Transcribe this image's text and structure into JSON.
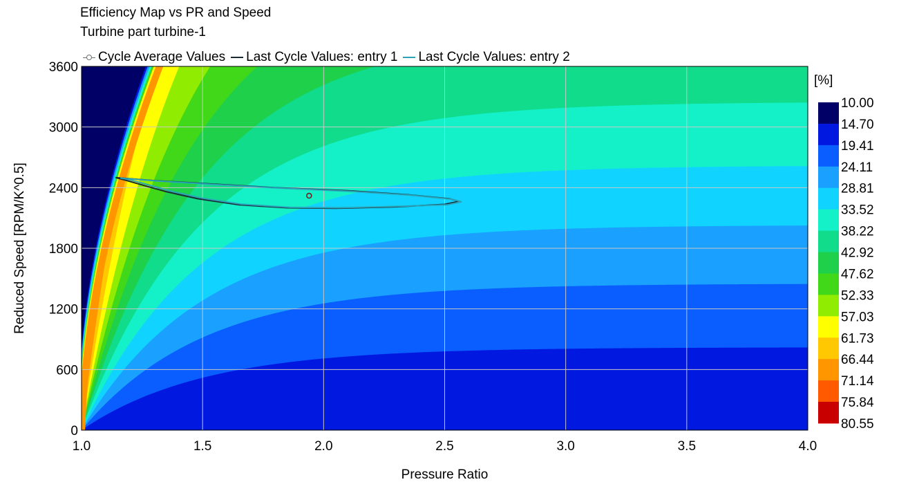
{
  "chart_data": {
    "type": "heatmap",
    "title": "Efficiency Map vs PR and Speed",
    "subtitle": "Turbine part turbine-1",
    "xlabel": "Pressure Ratio",
    "ylabel": "Reduced Speed [RPM/K^0.5]",
    "xlim": [
      1.0,
      4.0
    ],
    "ylim": [
      0,
      3600
    ],
    "x_ticks": [
      "1.0",
      "1.5",
      "2.0",
      "2.5",
      "3.0",
      "3.5",
      "4.0"
    ],
    "y_ticks": [
      "0",
      "600",
      "1200",
      "1800",
      "2400",
      "3000",
      "3600"
    ],
    "grid": true,
    "legend": {
      "position": "top",
      "entries": [
        {
          "label": "Cycle Average Values",
          "color": "#6a7072",
          "marker": "circle"
        },
        {
          "label": "Last Cycle Values: entry 1",
          "color": "#1a2b33"
        },
        {
          "label": "Last Cycle Values: entry 2",
          "color": "#2aa3b8"
        }
      ]
    },
    "colorbar": {
      "unit": "[%]",
      "levels": [
        "10.00",
        "14.70",
        "19.41",
        "24.11",
        "28.81",
        "33.52",
        "38.22",
        "42.92",
        "47.62",
        "52.33",
        "57.03",
        "61.73",
        "66.44",
        "71.14",
        "75.84",
        "80.55"
      ],
      "colors": [
        "#000066",
        "#0018e0",
        "#0a5dff",
        "#1aa0ff",
        "#10d4ff",
        "#14f0c8",
        "#10dc8c",
        "#1ed04a",
        "#40d818",
        "#90ec00",
        "#ffff00",
        "#ffc800",
        "#ff9600",
        "#ff5a00",
        "#f51010",
        "#c80000"
      ]
    },
    "series": [
      {
        "name": "Cycle Average Values",
        "points": [
          [
            1.94,
            2320
          ]
        ]
      },
      {
        "name": "Last Cycle Values: entry 1",
        "points": [
          [
            1.14,
            2500
          ],
          [
            1.3,
            2470
          ],
          [
            1.55,
            2435
          ],
          [
            1.8,
            2400
          ],
          [
            2.1,
            2370
          ],
          [
            2.35,
            2330
          ],
          [
            2.52,
            2290
          ],
          [
            2.56,
            2265
          ],
          [
            2.5,
            2235
          ],
          [
            2.3,
            2210
          ],
          [
            2.05,
            2195
          ],
          [
            1.85,
            2200
          ],
          [
            1.65,
            2230
          ],
          [
            1.48,
            2290
          ],
          [
            1.35,
            2360
          ],
          [
            1.26,
            2420
          ],
          [
            1.18,
            2475
          ],
          [
            1.14,
            2500
          ]
        ]
      },
      {
        "name": "Last Cycle Values: entry 2",
        "points": [
          [
            1.16,
            2495
          ],
          [
            1.32,
            2465
          ],
          [
            1.56,
            2430
          ],
          [
            1.82,
            2395
          ],
          [
            2.1,
            2365
          ],
          [
            2.36,
            2325
          ],
          [
            2.53,
            2285
          ],
          [
            2.57,
            2260
          ],
          [
            2.51,
            2230
          ],
          [
            2.31,
            2215
          ],
          [
            2.06,
            2200
          ],
          [
            1.86,
            2205
          ],
          [
            1.66,
            2236
          ],
          [
            1.5,
            2295
          ],
          [
            1.37,
            2365
          ],
          [
            1.28,
            2425
          ],
          [
            1.2,
            2478
          ],
          [
            1.16,
            2495
          ]
        ]
      }
    ]
  }
}
